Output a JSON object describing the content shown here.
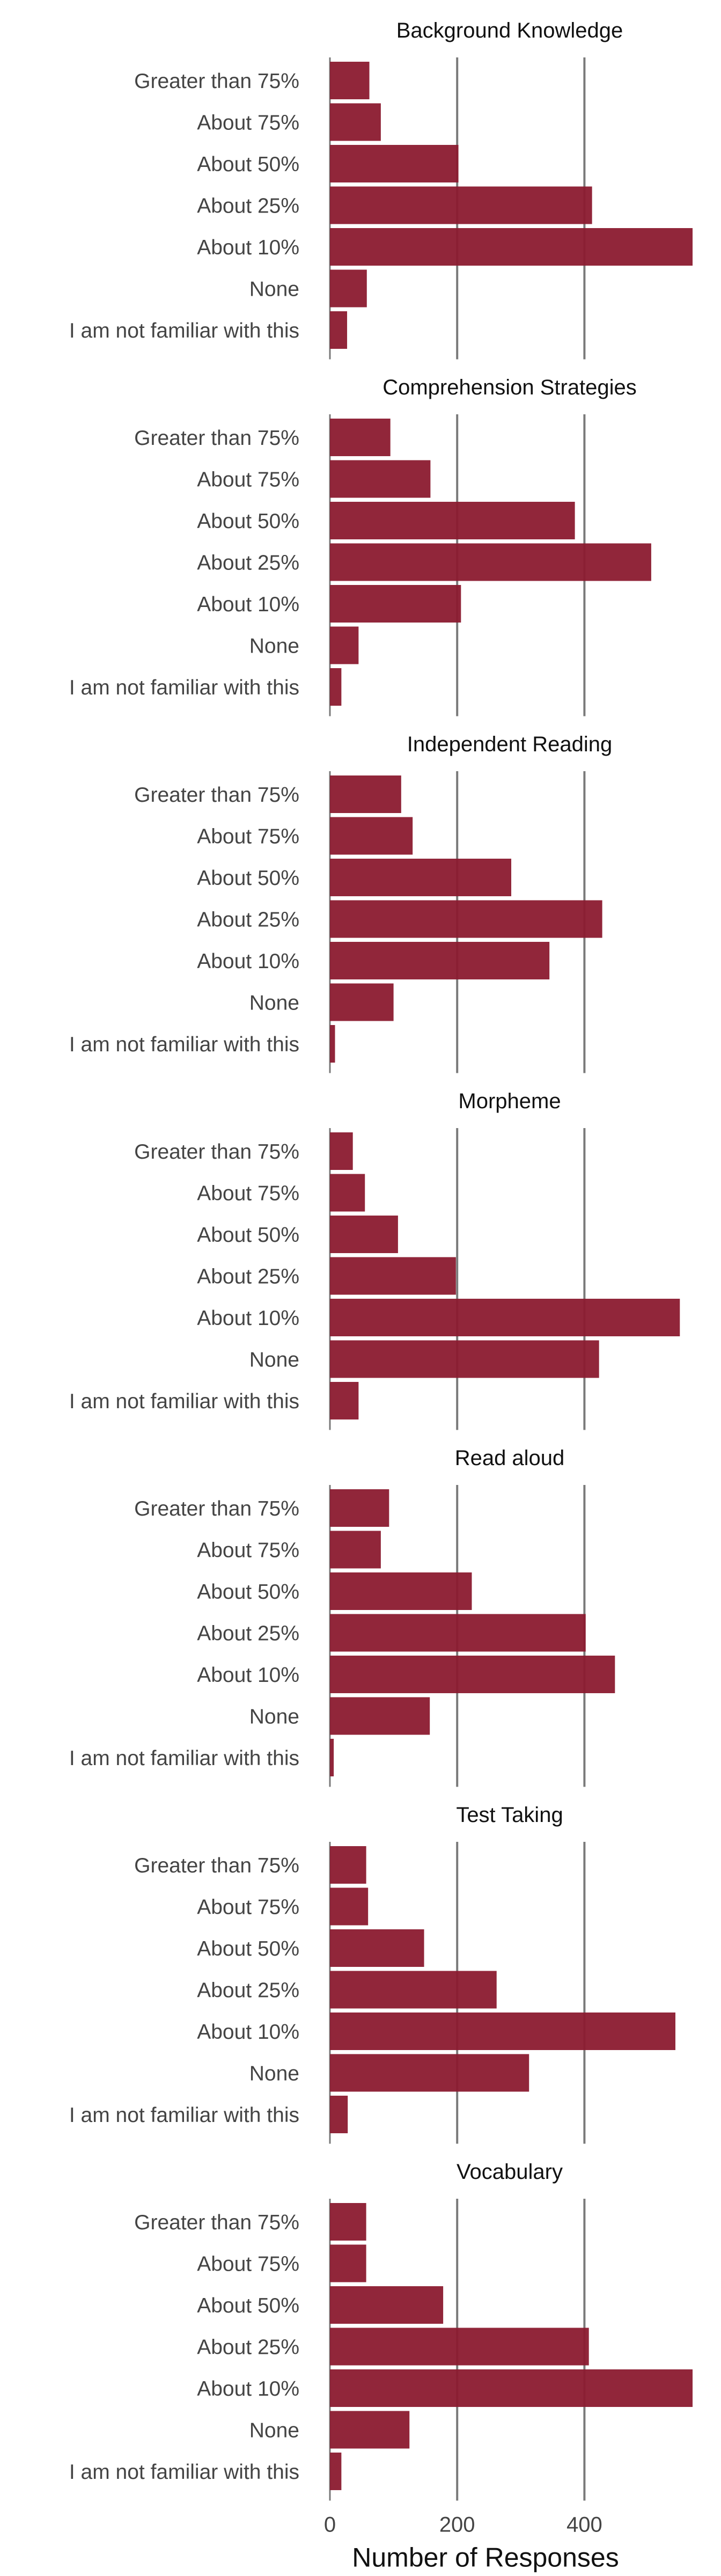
{
  "chart_data": {
    "type": "bar",
    "orientation": "horizontal",
    "faceted": true,
    "bar_color": "#8b1a2f",
    "grid_color": "#7a7a7a",
    "xlabel": "Number of Responses",
    "xticks": [
      0,
      200,
      400
    ],
    "xlim": [
      0,
      570
    ],
    "categories": [
      "Greater than 75%",
      "About 75%",
      "About 50%",
      "About 25%",
      "About 10%",
      "None",
      "I am not familiar with this"
    ],
    "panels": [
      {
        "title": "Background Knowledge",
        "values": [
          62,
          80,
          202,
          412,
          570,
          58,
          27
        ]
      },
      {
        "title": "Comprehension Strategies",
        "values": [
          95,
          158,
          385,
          505,
          206,
          45,
          18
        ]
      },
      {
        "title": "Independent Reading",
        "values": [
          112,
          130,
          285,
          428,
          345,
          100,
          8
        ]
      },
      {
        "title": "Morpheme",
        "values": [
          36,
          55,
          107,
          198,
          550,
          423,
          45
        ]
      },
      {
        "title": "Read aloud",
        "values": [
          93,
          80,
          223,
          402,
          448,
          157,
          6
        ]
      },
      {
        "title": "Test Taking",
        "values": [
          57,
          60,
          148,
          262,
          543,
          313,
          28
        ]
      },
      {
        "title": "Vocabulary",
        "values": [
          57,
          57,
          178,
          407,
          570,
          125,
          18
        ]
      }
    ]
  }
}
